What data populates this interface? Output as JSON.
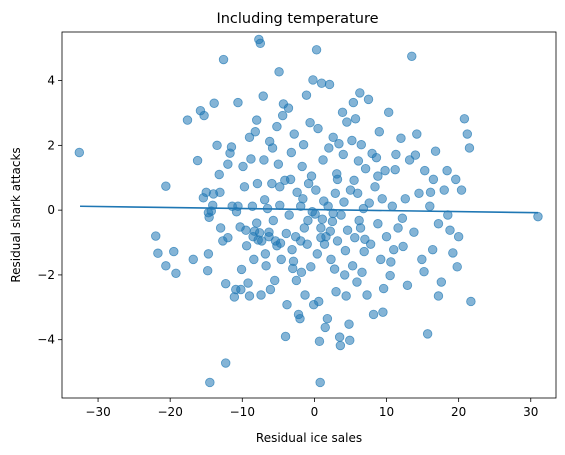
{
  "chart_data": {
    "type": "scatter",
    "title": "Including temperature",
    "xlabel": "Residual ice sales",
    "ylabel": "Residual shark attacks",
    "xlim": [
      -35,
      33.5
    ],
    "ylim": [
      -5.8,
      5.5
    ],
    "xticks": [
      -30,
      -20,
      -10,
      0,
      10,
      20,
      30
    ],
    "yticks": [
      -4,
      -2,
      0,
      2,
      4
    ],
    "xtick_labels": [
      "−30",
      "−20",
      "−10",
      "0",
      "10",
      "20",
      "30"
    ],
    "ytick_labels": [
      "−4",
      "−2",
      "0",
      "2",
      "4"
    ],
    "grid": false,
    "point_color": "#1f77b4",
    "line_color": "#1f77b4",
    "fit_line": {
      "x": [
        -32.5,
        31.0
      ],
      "y": [
        0.12,
        -0.08
      ]
    },
    "points": [
      [
        -32.6,
        1.78
      ],
      [
        -20.6,
        0.74
      ],
      [
        -22.0,
        -0.8
      ],
      [
        -21.7,
        -1.33
      ],
      [
        -20.6,
        -1.72
      ],
      [
        -19.5,
        -1.28
      ],
      [
        -19.2,
        -1.95
      ],
      [
        -17.6,
        2.78
      ],
      [
        -16.8,
        -1.52
      ],
      [
        -16.2,
        1.53
      ],
      [
        -15.8,
        3.07
      ],
      [
        -15.3,
        2.92
      ],
      [
        -15.4,
        0.38
      ],
      [
        -15.0,
        0.55
      ],
      [
        -14.7,
        -0.08
      ],
      [
        -14.6,
        -0.22
      ],
      [
        -14.7,
        -1.35
      ],
      [
        -14.8,
        -1.87
      ],
      [
        -14.3,
        -0.03
      ],
      [
        -14.1,
        0.15
      ],
      [
        -13.9,
        3.3
      ],
      [
        -13.5,
        2.0
      ],
      [
        -13.1,
        0.55
      ],
      [
        -12.6,
        4.65
      ],
      [
        -13.0,
        -0.55
      ],
      [
        -12.7,
        -0.95
      ],
      [
        -12.3,
        -2.27
      ],
      [
        -14.5,
        -5.32
      ],
      [
        -12.3,
        -4.72
      ],
      [
        -12.0,
        1.42
      ],
      [
        -11.7,
        1.76
      ],
      [
        -11.4,
        0.12
      ],
      [
        -11.1,
        -2.68
      ],
      [
        -10.9,
        -2.45
      ],
      [
        -10.6,
        3.32
      ],
      [
        -10.6,
        0.12
      ],
      [
        -10.3,
        -0.52
      ],
      [
        -10.2,
        -2.45
      ],
      [
        -10.1,
        -1.83
      ],
      [
        -9.9,
        1.35
      ],
      [
        -9.7,
        0.72
      ],
      [
        -9.5,
        -0.62
      ],
      [
        -9.4,
        -1.1
      ],
      [
        -9.2,
        -2.25
      ],
      [
        -9.0,
        2.25
      ],
      [
        -8.8,
        1.58
      ],
      [
        -8.6,
        0.12
      ],
      [
        -8.5,
        -0.82
      ],
      [
        -8.4,
        -1.52
      ],
      [
        -8.3,
        -0.65
      ],
      [
        -8.2,
        2.42
      ],
      [
        -8.0,
        2.78
      ],
      [
        -7.9,
        0.82
      ],
      [
        -7.8,
        -0.92
      ],
      [
        -7.6,
        -0.7
      ],
      [
        -7.7,
        5.27
      ],
      [
        -7.5,
        5.15
      ],
      [
        -7.4,
        -2.62
      ],
      [
        -7.3,
        -0.95
      ],
      [
        -7.1,
        3.52
      ],
      [
        -7.0,
        1.55
      ],
      [
        -6.9,
        0.32
      ],
      [
        -6.8,
        -1.35
      ],
      [
        -6.7,
        -1.72
      ],
      [
        -6.5,
        0.05
      ],
      [
        -6.3,
        -0.68
      ],
      [
        -6.2,
        2.12
      ],
      [
        -6.1,
        -2.45
      ],
      [
        -5.9,
        0.82
      ],
      [
        -5.8,
        1.92
      ],
      [
        -5.7,
        -0.32
      ],
      [
        -5.5,
        -2.17
      ],
      [
        -5.4,
        -0.95
      ],
      [
        -5.2,
        2.58
      ],
      [
        -5.0,
        1.42
      ],
      [
        -4.9,
        4.27
      ],
      [
        -4.8,
        0.72
      ],
      [
        -4.7,
        -1.02
      ],
      [
        -4.6,
        -1.52
      ],
      [
        -4.4,
        2.92
      ],
      [
        -4.3,
        3.28
      ],
      [
        -4.1,
        0.92
      ],
      [
        -4.0,
        -3.9
      ],
      [
        -3.9,
        -0.72
      ],
      [
        -3.8,
        -2.92
      ],
      [
        -3.6,
        3.15
      ],
      [
        -3.5,
        -0.15
      ],
      [
        -3.3,
        0.95
      ],
      [
        -3.2,
        1.78
      ],
      [
        -3.1,
        -1.22
      ],
      [
        -2.9,
        -1.58
      ],
      [
        -2.8,
        2.35
      ],
      [
        -2.6,
        -0.82
      ],
      [
        -2.5,
        -2.17
      ],
      [
        -2.4,
        0.55
      ],
      [
        -2.2,
        -3.22
      ],
      [
        -2.0,
        -3.35
      ],
      [
        -1.9,
        0.12
      ],
      [
        -1.8,
        -1.92
      ],
      [
        -1.7,
        1.35
      ],
      [
        -1.5,
        2.02
      ],
      [
        -1.4,
        -0.55
      ],
      [
        -1.3,
        -2.62
      ],
      [
        -1.1,
        3.55
      ],
      [
        -1.0,
        -1.05
      ],
      [
        -0.9,
        -0.32
      ],
      [
        -0.8,
        0.82
      ],
      [
        -0.6,
        2.7
      ],
      [
        -0.5,
        -1.75
      ],
      [
        -0.4,
        1.05
      ],
      [
        -0.3,
        -0.05
      ],
      [
        -0.2,
        4.02
      ],
      [
        -0.1,
        -2.92
      ],
      [
        0.1,
        -0.12
      ],
      [
        0.2,
        0.62
      ],
      [
        0.3,
        4.95
      ],
      [
        0.4,
        -1.35
      ],
      [
        0.5,
        2.52
      ],
      [
        0.6,
        -2.82
      ],
      [
        0.7,
        -4.05
      ],
      [
        0.8,
        -5.32
      ],
      [
        0.9,
        -0.55
      ],
      [
        1.0,
        3.92
      ],
      [
        1.1,
        -0.28
      ],
      [
        1.2,
        1.55
      ],
      [
        1.3,
        0.28
      ],
      [
        1.4,
        -1.05
      ],
      [
        1.5,
        -3.62
      ],
      [
        1.6,
        -0.82
      ],
      [
        1.8,
        -3.35
      ],
      [
        1.9,
        0.12
      ],
      [
        2.0,
        1.92
      ],
      [
        2.1,
        3.88
      ],
      [
        2.2,
        -0.65
      ],
      [
        2.3,
        -1.52
      ],
      [
        2.5,
        -0.35
      ],
      [
        2.6,
        2.25
      ],
      [
        2.8,
        -1.82
      ],
      [
        2.9,
        0.52
      ],
      [
        3.0,
        -2.52
      ],
      [
        3.1,
        1.12
      ],
      [
        3.2,
        -0.95
      ],
      [
        3.4,
        2.05
      ],
      [
        3.5,
        -3.92
      ],
      [
        3.6,
        -4.18
      ],
      [
        3.7,
        -0.15
      ],
      [
        3.9,
        3.02
      ],
      [
        4.0,
        1.72
      ],
      [
        4.1,
        0.25
      ],
      [
        4.3,
        -1.25
      ],
      [
        4.4,
        -2.65
      ],
      [
        4.5,
        2.72
      ],
      [
        4.6,
        -0.62
      ],
      [
        4.8,
        -3.52
      ],
      [
        4.9,
        -4.02
      ],
      [
        5.0,
        0.62
      ],
      [
        5.2,
        2.15
      ],
      [
        5.3,
        -1.72
      ],
      [
        5.4,
        3.32
      ],
      [
        5.5,
        0.92
      ],
      [
        5.6,
        -0.85
      ],
      [
        5.7,
        2.82
      ],
      [
        5.9,
        -2.22
      ],
      [
        6.0,
        0.52
      ],
      [
        6.1,
        1.52
      ],
      [
        6.2,
        -0.32
      ],
      [
        6.3,
        3.62
      ],
      [
        6.5,
        2.02
      ],
      [
        6.6,
        -1.92
      ],
      [
        6.8,
        0.05
      ],
      [
        6.9,
        -1.28
      ],
      [
        7.1,
        1.28
      ],
      [
        7.3,
        -2.62
      ],
      [
        7.5,
        3.42
      ],
      [
        7.6,
        0.22
      ],
      [
        7.8,
        -1.05
      ],
      [
        8.0,
        1.75
      ],
      [
        8.2,
        -3.22
      ],
      [
        8.4,
        0.72
      ],
      [
        8.6,
        1.62
      ],
      [
        8.8,
        -0.42
      ],
      [
        9.0,
        2.42
      ],
      [
        9.2,
        -1.52
      ],
      [
        9.4,
        0.35
      ],
      [
        9.6,
        -2.42
      ],
      [
        9.8,
        1.22
      ],
      [
        10.0,
        -0.82
      ],
      [
        10.3,
        3.02
      ],
      [
        10.5,
        -2.02
      ],
      [
        10.8,
        0.12
      ],
      [
        11.0,
        -1.22
      ],
      [
        11.3,
        1.72
      ],
      [
        11.6,
        -0.55
      ],
      [
        12.0,
        2.22
      ],
      [
        12.3,
        -1.12
      ],
      [
        12.6,
        0.35
      ],
      [
        12.9,
        -2.32
      ],
      [
        13.2,
        1.55
      ],
      [
        13.5,
        4.75
      ],
      [
        13.8,
        -0.68
      ],
      [
        14.2,
        2.35
      ],
      [
        14.5,
        0.52
      ],
      [
        14.9,
        -1.52
      ],
      [
        15.3,
        1.22
      ],
      [
        15.7,
        -3.82
      ],
      [
        16.0,
        0.12
      ],
      [
        16.4,
        -1.22
      ],
      [
        16.8,
        1.82
      ],
      [
        17.2,
        -0.42
      ],
      [
        17.6,
        -2.22
      ],
      [
        18.0,
        0.62
      ],
      [
        18.4,
        1.22
      ],
      [
        18.8,
        -0.62
      ],
      [
        19.2,
        -1.32
      ],
      [
        19.6,
        0.95
      ],
      [
        20.0,
        -0.82
      ],
      [
        20.4,
        0.62
      ],
      [
        20.8,
        2.82
      ],
      [
        21.2,
        2.35
      ],
      [
        21.5,
        1.92
      ],
      [
        21.7,
        -2.82
      ],
      [
        17.2,
        -2.65
      ],
      [
        16.1,
        0.55
      ],
      [
        15.2,
        -1.9
      ],
      [
        11.2,
        1.25
      ],
      [
        9.5,
        -3.15
      ],
      [
        2.6,
        -0.1
      ],
      [
        -6.3,
        -0.82
      ],
      [
        -9.0,
        -2.65
      ],
      [
        -10.8,
        -0.05
      ],
      [
        -12.0,
        -0.85
      ],
      [
        -13.2,
        1.1
      ],
      [
        -14.0,
        0.5
      ],
      [
        -5.2,
        -1.1
      ],
      [
        -3.0,
        -1.8
      ],
      [
        -1.6,
        0.35
      ],
      [
        0.9,
        -0.85
      ],
      [
        3.2,
        0.95
      ],
      [
        6.4,
        -0.55
      ],
      [
        8.8,
        1.05
      ],
      [
        10.6,
        -1.6
      ],
      [
        12.2,
        -0.25
      ],
      [
        14.0,
        1.7
      ],
      [
        16.5,
        0.95
      ],
      [
        18.5,
        -0.15
      ],
      [
        19.8,
        -1.75
      ],
      [
        7.0,
        -0.9
      ],
      [
        4.2,
        -2.0
      ],
      [
        -1.9,
        -0.95
      ],
      [
        -4.8,
        0.15
      ],
      [
        -8.0,
        -0.4
      ],
      [
        -11.5,
        1.95
      ],
      [
        31.0,
        -0.2
      ]
    ]
  }
}
